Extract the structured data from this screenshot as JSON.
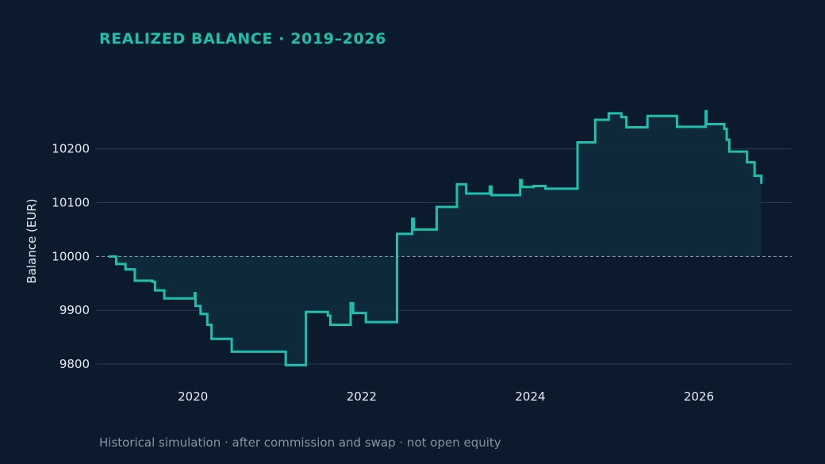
{
  "title": "REALIZED BALANCE · 2019–2026",
  "footnote": "Historical simulation · after commission and swap · not open equity",
  "colors": {
    "background": "#0b1b2d",
    "line": "#1fbfad",
    "fill": "#0e2c3c",
    "grid": "#2a3b4e",
    "baseline": "#9aa3ad",
    "text": "#e6ebf0",
    "muted": "#8793a0"
  },
  "chart_data": {
    "type": "line",
    "step": true,
    "title": "REALIZED BALANCE · 2019–2026",
    "xlabel": "",
    "ylabel": "Balance (EUR)",
    "xlim": [
      2018.85,
      2027.1
    ],
    "ylim": [
      9775,
      10285
    ],
    "xticks": [
      2020,
      2022,
      2024,
      2026
    ],
    "xtick_labels": [
      "2020",
      "2022",
      "2024",
      "2026"
    ],
    "yticks": [
      9800,
      9900,
      10000,
      10100,
      10200
    ],
    "ytick_labels": [
      "9800",
      "9900",
      "10000",
      "10100",
      "10200"
    ],
    "grid": "horizontal",
    "baseline": 10000,
    "fill_to_baseline": true,
    "series": [
      {
        "points": [
          [
            2019.0,
            10000
          ],
          [
            2019.09,
            9986
          ],
          [
            2019.2,
            9976
          ],
          [
            2019.31,
            9955
          ],
          [
            2019.52,
            9953
          ],
          [
            2019.55,
            9937
          ],
          [
            2019.66,
            9922
          ],
          [
            2020.0,
            9922
          ],
          [
            2020.02,
            9932
          ],
          [
            2020.03,
            9908
          ],
          [
            2020.09,
            9893
          ],
          [
            2020.17,
            9873
          ],
          [
            2020.22,
            9847
          ],
          [
            2020.45,
            9847
          ],
          [
            2020.46,
            9823
          ],
          [
            2021.07,
            9823
          ],
          [
            2021.1,
            9798
          ],
          [
            2021.33,
            9798
          ],
          [
            2021.34,
            9897
          ],
          [
            2021.56,
            9897
          ],
          [
            2021.6,
            9890
          ],
          [
            2021.63,
            9873
          ],
          [
            2021.85,
            9873
          ],
          [
            2021.87,
            9913
          ],
          [
            2021.9,
            9895
          ],
          [
            2022.03,
            9895
          ],
          [
            2022.05,
            9878
          ],
          [
            2022.41,
            9878
          ],
          [
            2022.42,
            10042
          ],
          [
            2022.58,
            10042
          ],
          [
            2022.6,
            10070
          ],
          [
            2022.62,
            10050
          ],
          [
            2022.88,
            10050
          ],
          [
            2022.89,
            10092
          ],
          [
            2023.12,
            10092
          ],
          [
            2023.13,
            10134
          ],
          [
            2023.23,
            10134
          ],
          [
            2023.24,
            10117
          ],
          [
            2023.5,
            10117
          ],
          [
            2023.52,
            10130
          ],
          [
            2023.54,
            10114
          ],
          [
            2023.86,
            10114
          ],
          [
            2023.88,
            10142
          ],
          [
            2023.9,
            10129
          ],
          [
            2024.03,
            10129
          ],
          [
            2024.04,
            10131
          ],
          [
            2024.16,
            10131
          ],
          [
            2024.18,
            10126
          ],
          [
            2024.55,
            10126
          ],
          [
            2024.56,
            10212
          ],
          [
            2024.76,
            10212
          ],
          [
            2024.77,
            10254
          ],
          [
            2024.92,
            10254
          ],
          [
            2024.93,
            10266
          ],
          [
            2025.07,
            10266
          ],
          [
            2025.08,
            10259
          ],
          [
            2025.13,
            10259
          ],
          [
            2025.14,
            10240
          ],
          [
            2025.38,
            10240
          ],
          [
            2025.39,
            10261
          ],
          [
            2025.73,
            10261
          ],
          [
            2025.74,
            10241
          ],
          [
            2026.07,
            10241
          ],
          [
            2026.08,
            10270
          ],
          [
            2026.09,
            10246
          ],
          [
            2026.28,
            10246
          ],
          [
            2026.3,
            10237
          ],
          [
            2026.33,
            10217
          ],
          [
            2026.36,
            10195
          ],
          [
            2026.55,
            10195
          ],
          [
            2026.57,
            10175
          ],
          [
            2026.65,
            10175
          ],
          [
            2026.66,
            10150
          ],
          [
            2026.72,
            10150
          ],
          [
            2026.74,
            10135
          ]
        ]
      }
    ]
  }
}
